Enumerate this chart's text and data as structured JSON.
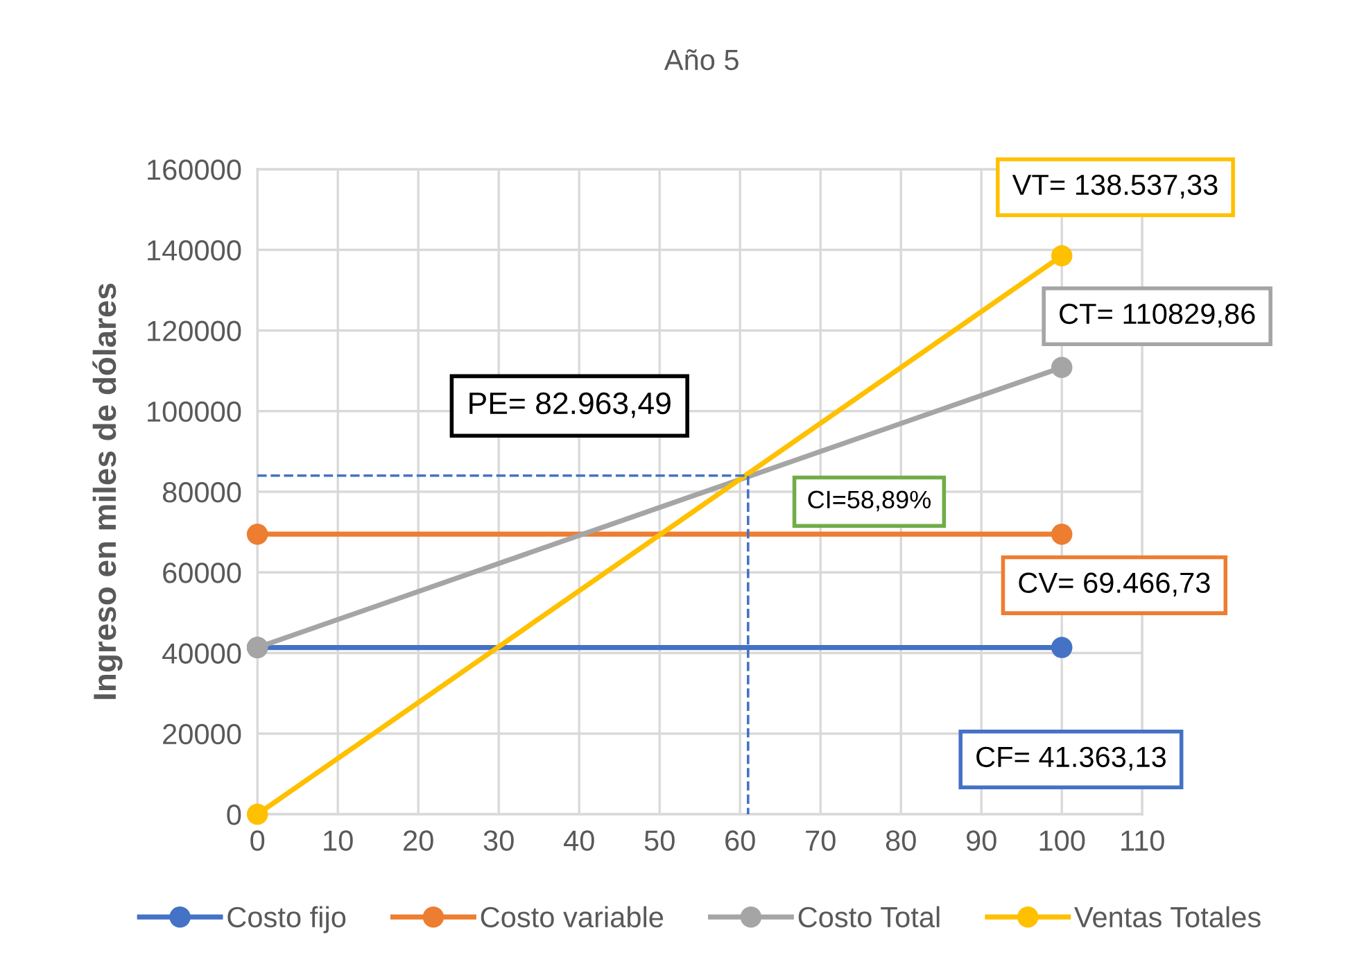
{
  "chart_data": {
    "type": "line",
    "title": "Año 5",
    "ylabel": "Ingreso en miles de dólares",
    "xlim": [
      0,
      110
    ],
    "xticks": [
      0,
      10,
      20,
      30,
      40,
      50,
      60,
      70,
      80,
      90,
      100,
      110
    ],
    "ylim": [
      0,
      160000
    ],
    "yticks": [
      0,
      20000,
      40000,
      60000,
      80000,
      100000,
      120000,
      140000,
      160000
    ],
    "grid": true,
    "legend": "bottom",
    "marker": "circle",
    "line_style": "solid",
    "series": [
      {
        "name": "Costo fijo",
        "color": "#4472c4",
        "x": [
          0,
          100
        ],
        "values": [
          41363.13,
          41363.13
        ]
      },
      {
        "name": "Costo variable",
        "color": "#ed7d31",
        "x": [
          0,
          100
        ],
        "values": [
          69466.73,
          69466.73
        ]
      },
      {
        "name": "Costo Total",
        "color": "#a5a5a5",
        "x": [
          0,
          100
        ],
        "values": [
          41363.13,
          110829.86
        ]
      },
      {
        "name": "Ventas Totales",
        "color": "#ffc000",
        "x": [
          0,
          100
        ],
        "values": [
          0,
          138537.33
        ]
      },
      {
        "color": "#4472c4",
        "x": [
          0,
          61,
          61
        ],
        "values": [
          84000,
          84000,
          0
        ],
        "marker": "none",
        "line_style": "dashed"
      }
    ],
    "annotations": [
      "VT= 138.537,33",
      "CT= 110829,86",
      "PE= 82.963,49",
      "CI=58,89%",
      "CV= 69.466,73",
      "CF= 41.363,13"
    ]
  }
}
